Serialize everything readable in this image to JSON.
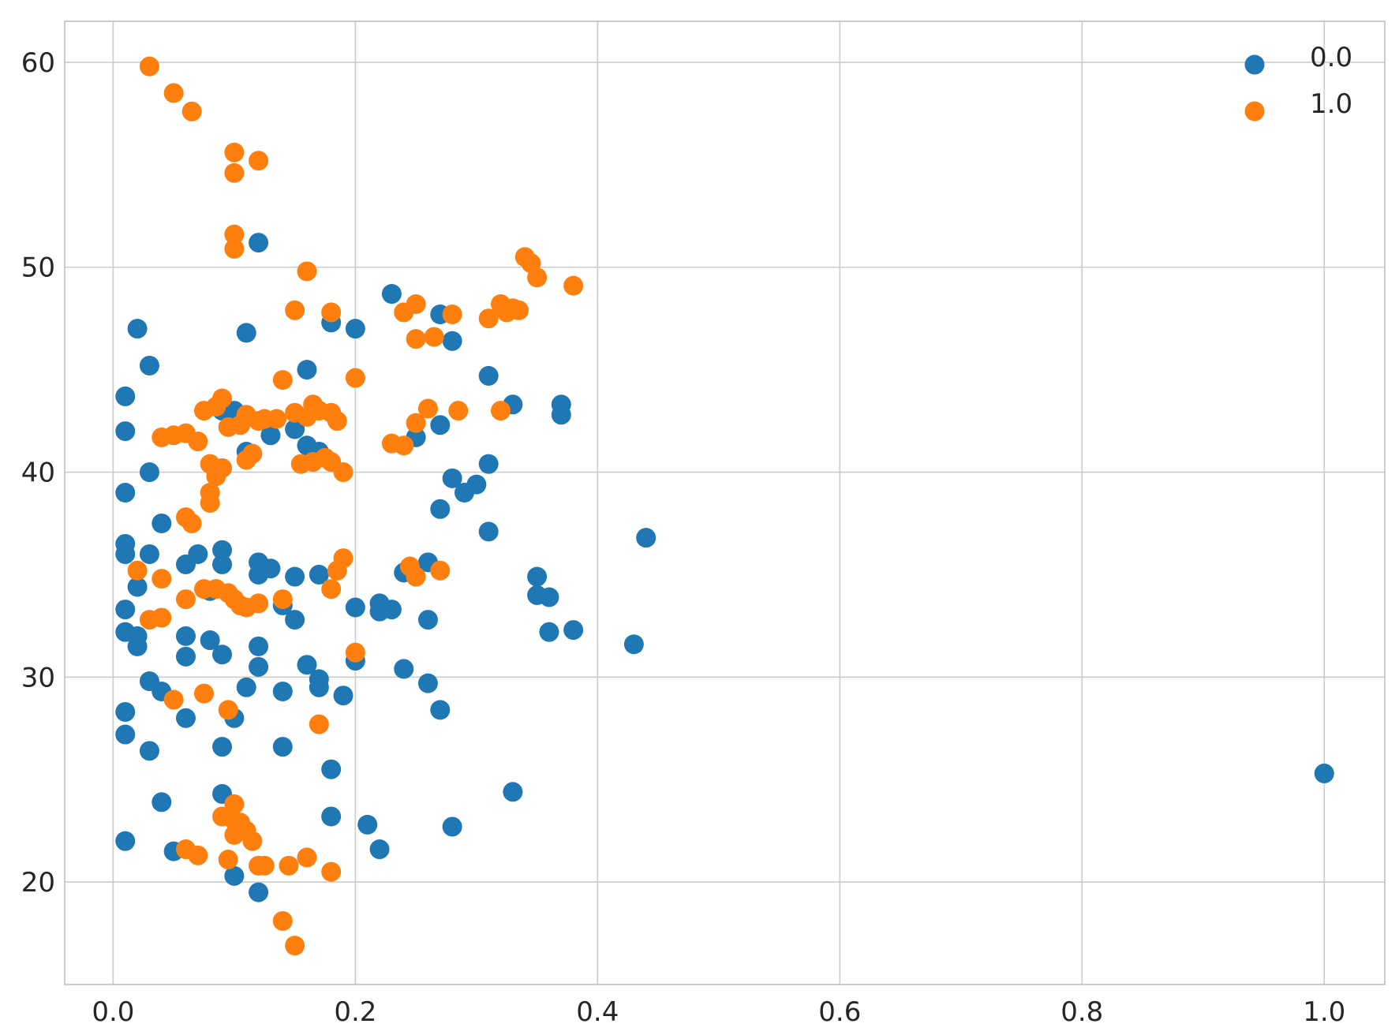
{
  "chart_data": {
    "type": "scatter",
    "title": "",
    "xlabel": "",
    "ylabel": "",
    "xlim": [
      -0.04,
      1.05
    ],
    "ylim": [
      15,
      62
    ],
    "xticks": [
      0.0,
      0.2,
      0.4,
      0.6,
      0.8,
      1.0
    ],
    "xtick_labels": [
      "0.0",
      "0.2",
      "0.4",
      "0.6",
      "0.8",
      "1.0"
    ],
    "yticks": [
      20,
      30,
      40,
      50,
      60
    ],
    "ytick_labels": [
      "20",
      "30",
      "40",
      "50",
      "60"
    ],
    "grid": true,
    "legend_position": "top-right",
    "series": [
      {
        "name": "0.0",
        "color": "#1f77b4",
        "points": [
          [
            0.01,
            43.7
          ],
          [
            0.01,
            42.0
          ],
          [
            0.01,
            39.0
          ],
          [
            0.01,
            36.5
          ],
          [
            0.01,
            36.0
          ],
          [
            0.01,
            33.3
          ],
          [
            0.01,
            32.2
          ],
          [
            0.01,
            28.3
          ],
          [
            0.01,
            27.2
          ],
          [
            0.01,
            22.0
          ],
          [
            0.02,
            47.0
          ],
          [
            0.02,
            34.4
          ],
          [
            0.02,
            32.0
          ],
          [
            0.02,
            31.5
          ],
          [
            0.03,
            45.2
          ],
          [
            0.03,
            40.0
          ],
          [
            0.03,
            36.0
          ],
          [
            0.03,
            29.8
          ],
          [
            0.03,
            26.4
          ],
          [
            0.04,
            37.5
          ],
          [
            0.04,
            29.3
          ],
          [
            0.04,
            23.9
          ],
          [
            0.05,
            21.5
          ],
          [
            0.06,
            35.5
          ],
          [
            0.06,
            32.0
          ],
          [
            0.06,
            31.0
          ],
          [
            0.06,
            28.0
          ],
          [
            0.07,
            36.0
          ],
          [
            0.08,
            34.2
          ],
          [
            0.08,
            31.8
          ],
          [
            0.09,
            36.2
          ],
          [
            0.09,
            35.5
          ],
          [
            0.09,
            31.1
          ],
          [
            0.09,
            26.6
          ],
          [
            0.09,
            24.3
          ],
          [
            0.09,
            43.0
          ],
          [
            0.1,
            43.0
          ],
          [
            0.1,
            28.0
          ],
          [
            0.1,
            20.3
          ],
          [
            0.11,
            46.8
          ],
          [
            0.11,
            41.0
          ],
          [
            0.11,
            29.5
          ],
          [
            0.12,
            51.2
          ],
          [
            0.12,
            35.6
          ],
          [
            0.12,
            35.0
          ],
          [
            0.12,
            31.5
          ],
          [
            0.12,
            30.5
          ],
          [
            0.12,
            19.5
          ],
          [
            0.13,
            41.8
          ],
          [
            0.13,
            35.3
          ],
          [
            0.14,
            33.5
          ],
          [
            0.14,
            29.3
          ],
          [
            0.14,
            26.6
          ],
          [
            0.15,
            42.1
          ],
          [
            0.15,
            34.9
          ],
          [
            0.15,
            32.8
          ],
          [
            0.16,
            45.0
          ],
          [
            0.16,
            41.3
          ],
          [
            0.16,
            30.6
          ],
          [
            0.17,
            41.0
          ],
          [
            0.17,
            35.0
          ],
          [
            0.17,
            29.9
          ],
          [
            0.17,
            29.5
          ],
          [
            0.18,
            47.3
          ],
          [
            0.18,
            25.5
          ],
          [
            0.18,
            23.2
          ],
          [
            0.19,
            29.1
          ],
          [
            0.2,
            47.0
          ],
          [
            0.2,
            33.4
          ],
          [
            0.2,
            30.8
          ],
          [
            0.21,
            22.8
          ],
          [
            0.22,
            33.6
          ],
          [
            0.22,
            33.2
          ],
          [
            0.22,
            21.6
          ],
          [
            0.23,
            48.7
          ],
          [
            0.23,
            33.3
          ],
          [
            0.24,
            35.1
          ],
          [
            0.24,
            30.4
          ],
          [
            0.25,
            41.7
          ],
          [
            0.26,
            35.6
          ],
          [
            0.26,
            32.8
          ],
          [
            0.26,
            29.7
          ],
          [
            0.27,
            47.7
          ],
          [
            0.27,
            42.3
          ],
          [
            0.27,
            38.2
          ],
          [
            0.27,
            28.4
          ],
          [
            0.28,
            46.4
          ],
          [
            0.28,
            39.7
          ],
          [
            0.28,
            22.7
          ],
          [
            0.29,
            39.0
          ],
          [
            0.3,
            39.4
          ],
          [
            0.31,
            44.7
          ],
          [
            0.31,
            40.4
          ],
          [
            0.31,
            37.1
          ],
          [
            0.33,
            43.3
          ],
          [
            0.33,
            24.4
          ],
          [
            0.35,
            34.9
          ],
          [
            0.35,
            34.0
          ],
          [
            0.36,
            33.9
          ],
          [
            0.36,
            32.2
          ],
          [
            0.37,
            43.3
          ],
          [
            0.37,
            42.8
          ],
          [
            0.38,
            32.3
          ],
          [
            0.43,
            31.6
          ],
          [
            0.44,
            36.8
          ],
          [
            1.0,
            25.3
          ]
        ]
      },
      {
        "name": "1.0",
        "color": "#ff7f0e",
        "points": [
          [
            0.02,
            35.2
          ],
          [
            0.03,
            59.8
          ],
          [
            0.03,
            32.8
          ],
          [
            0.04,
            41.7
          ],
          [
            0.04,
            34.8
          ],
          [
            0.04,
            32.9
          ],
          [
            0.05,
            58.5
          ],
          [
            0.05,
            41.8
          ],
          [
            0.05,
            28.9
          ],
          [
            0.06,
            41.9
          ],
          [
            0.06,
            37.8
          ],
          [
            0.06,
            33.8
          ],
          [
            0.06,
            21.6
          ],
          [
            0.065,
            57.6
          ],
          [
            0.065,
            37.5
          ],
          [
            0.07,
            41.5
          ],
          [
            0.07,
            21.3
          ],
          [
            0.075,
            43.0
          ],
          [
            0.075,
            34.3
          ],
          [
            0.075,
            29.2
          ],
          [
            0.08,
            40.4
          ],
          [
            0.08,
            39.0
          ],
          [
            0.08,
            38.5
          ],
          [
            0.085,
            43.2
          ],
          [
            0.085,
            39.8
          ],
          [
            0.085,
            34.3
          ],
          [
            0.09,
            43.6
          ],
          [
            0.09,
            40.2
          ],
          [
            0.09,
            23.2
          ],
          [
            0.095,
            42.2
          ],
          [
            0.095,
            34.1
          ],
          [
            0.095,
            28.4
          ],
          [
            0.095,
            21.1
          ],
          [
            0.1,
            55.6
          ],
          [
            0.1,
            54.6
          ],
          [
            0.1,
            51.6
          ],
          [
            0.1,
            50.9
          ],
          [
            0.1,
            33.8
          ],
          [
            0.1,
            23.8
          ],
          [
            0.1,
            23.0
          ],
          [
            0.1,
            22.3
          ],
          [
            0.105,
            42.3
          ],
          [
            0.105,
            33.5
          ],
          [
            0.105,
            22.9
          ],
          [
            0.11,
            40.6
          ],
          [
            0.11,
            42.8
          ],
          [
            0.11,
            33.4
          ],
          [
            0.11,
            22.5
          ],
          [
            0.115,
            40.9
          ],
          [
            0.115,
            22.0
          ],
          [
            0.12,
            55.2
          ],
          [
            0.12,
            42.5
          ],
          [
            0.12,
            33.6
          ],
          [
            0.12,
            20.8
          ],
          [
            0.125,
            42.6
          ],
          [
            0.125,
            20.8
          ],
          [
            0.135,
            42.6
          ],
          [
            0.14,
            44.5
          ],
          [
            0.14,
            33.8
          ],
          [
            0.14,
            18.1
          ],
          [
            0.145,
            20.8
          ],
          [
            0.15,
            47.9
          ],
          [
            0.15,
            42.9
          ],
          [
            0.15,
            16.9
          ],
          [
            0.155,
            40.4
          ],
          [
            0.16,
            49.8
          ],
          [
            0.16,
            42.7
          ],
          [
            0.16,
            21.2
          ],
          [
            0.165,
            43.3
          ],
          [
            0.165,
            40.5
          ],
          [
            0.17,
            43.0
          ],
          [
            0.17,
            27.7
          ],
          [
            0.175,
            40.7
          ],
          [
            0.18,
            47.8
          ],
          [
            0.18,
            42.9
          ],
          [
            0.18,
            40.5
          ],
          [
            0.18,
            34.3
          ],
          [
            0.18,
            20.5
          ],
          [
            0.185,
            42.5
          ],
          [
            0.185,
            35.2
          ],
          [
            0.19,
            40.0
          ],
          [
            0.19,
            35.8
          ],
          [
            0.2,
            44.6
          ],
          [
            0.2,
            31.2
          ],
          [
            0.23,
            41.4
          ],
          [
            0.24,
            47.8
          ],
          [
            0.24,
            41.3
          ],
          [
            0.245,
            35.4
          ],
          [
            0.25,
            48.2
          ],
          [
            0.25,
            46.5
          ],
          [
            0.25,
            42.4
          ],
          [
            0.25,
            34.9
          ],
          [
            0.26,
            43.1
          ],
          [
            0.265,
            46.6
          ],
          [
            0.27,
            35.2
          ],
          [
            0.28,
            47.7
          ],
          [
            0.285,
            43.0
          ],
          [
            0.31,
            47.5
          ],
          [
            0.32,
            48.2
          ],
          [
            0.32,
            43.0
          ],
          [
            0.325,
            47.8
          ],
          [
            0.33,
            48.0
          ],
          [
            0.335,
            47.9
          ],
          [
            0.34,
            50.5
          ],
          [
            0.345,
            50.2
          ],
          [
            0.35,
            49.5
          ],
          [
            0.38,
            49.1
          ]
        ]
      }
    ]
  }
}
